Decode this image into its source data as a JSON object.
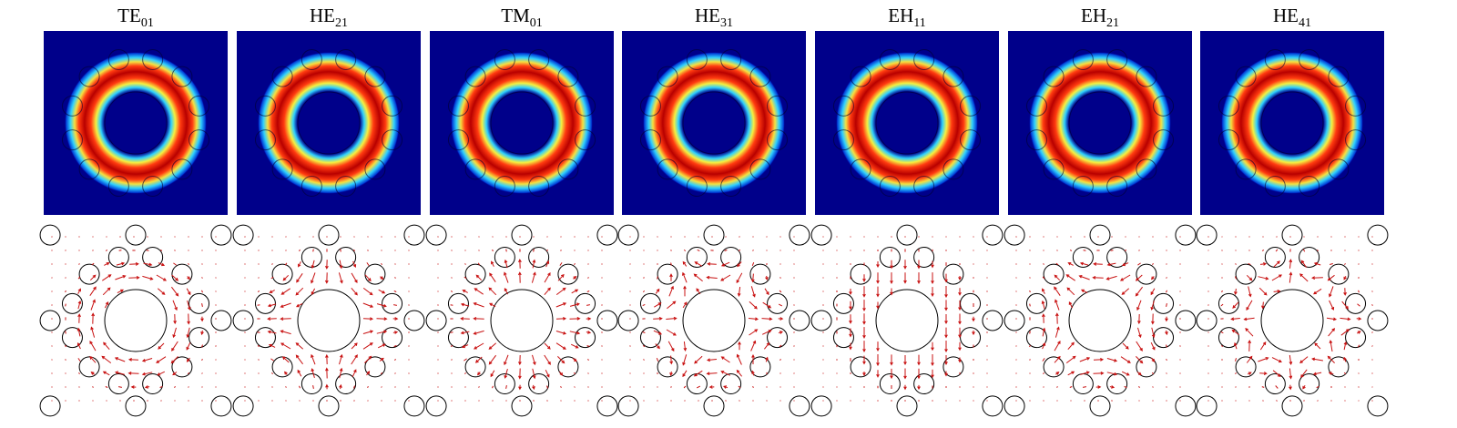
{
  "modes": [
    {
      "name": "TE",
      "subscript": "01"
    },
    {
      "name": "HE",
      "subscript": "21"
    },
    {
      "name": "TM",
      "subscript": "01"
    },
    {
      "name": "HE",
      "subscript": "31"
    },
    {
      "name": "EH",
      "subscript": "11"
    },
    {
      "name": "EH",
      "subscript": "21"
    },
    {
      "name": "HE",
      "subscript": "41"
    }
  ]
}
